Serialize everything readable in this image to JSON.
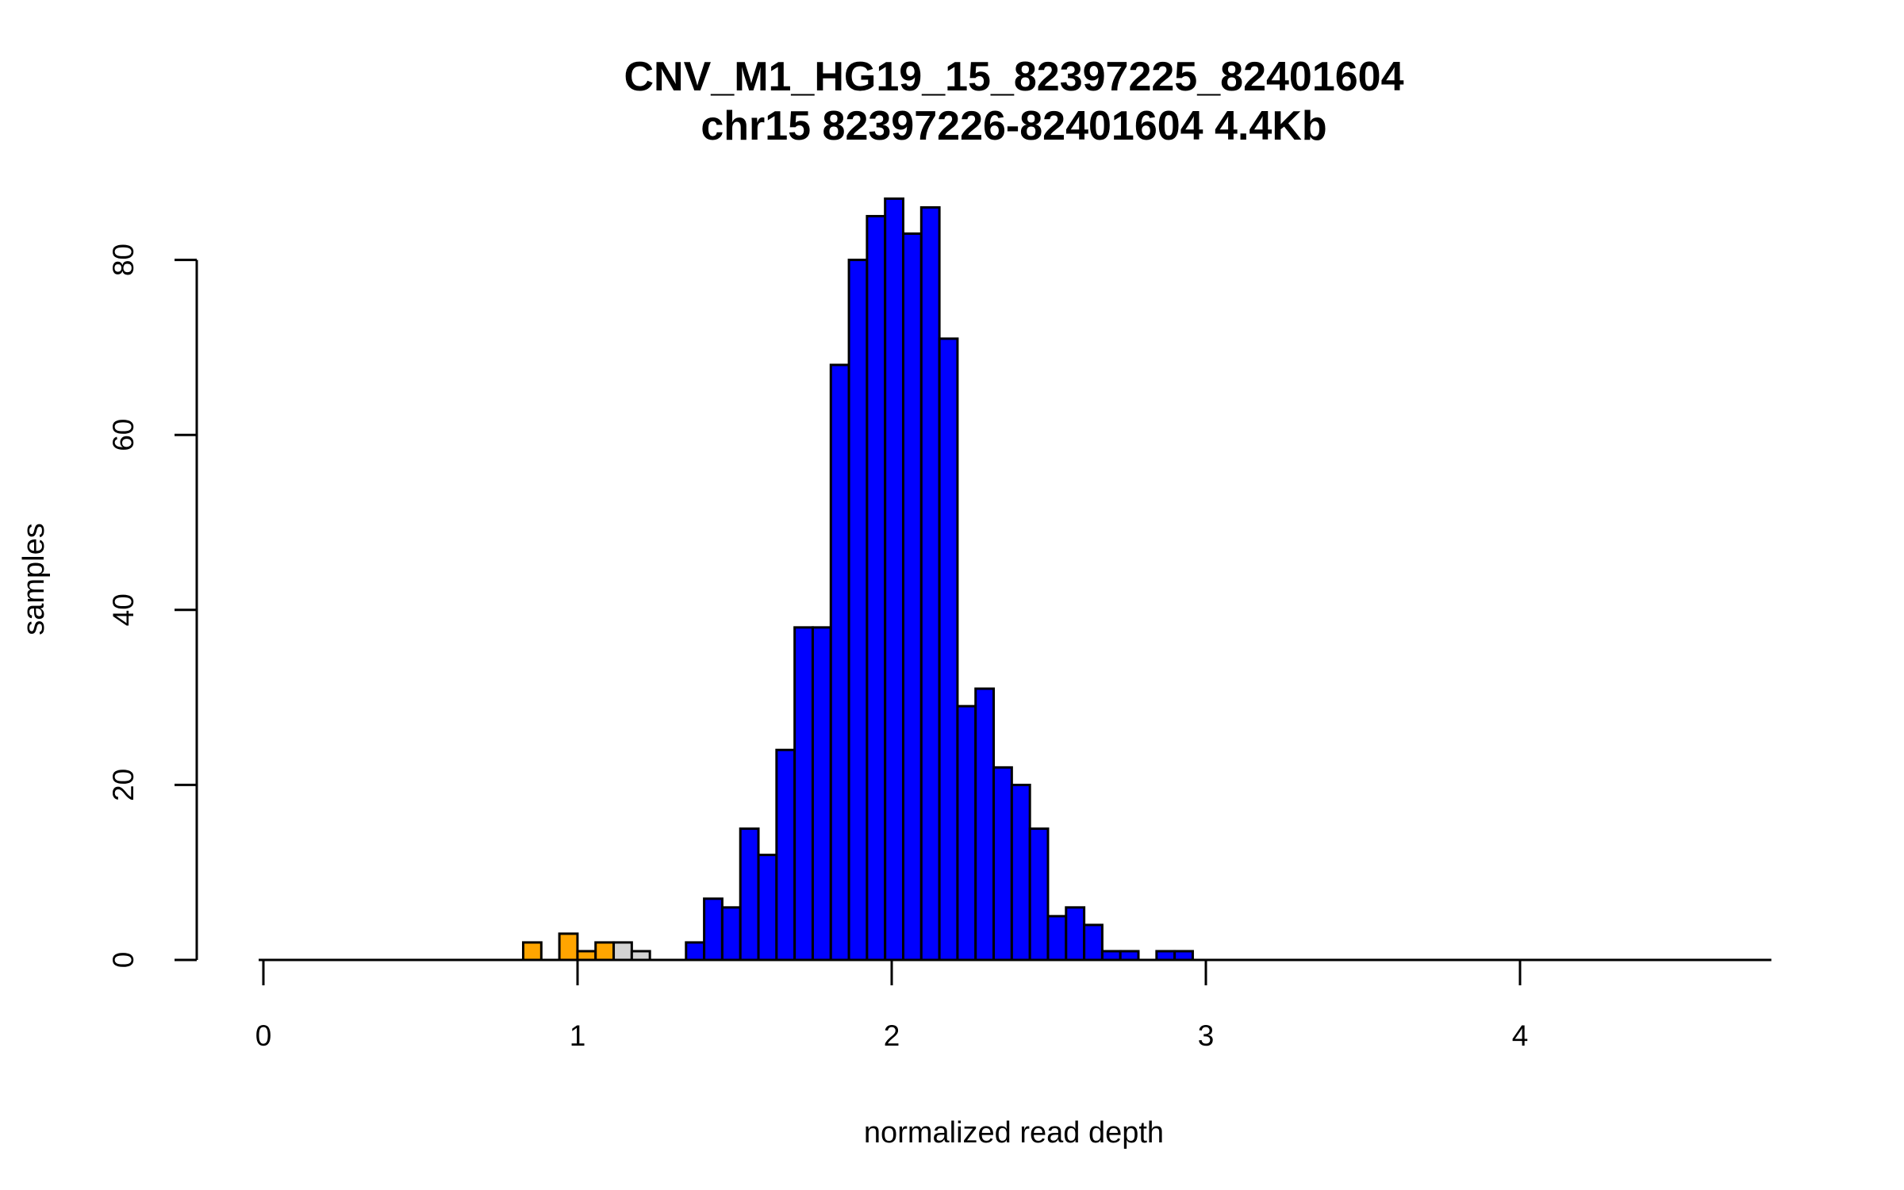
{
  "chart_data": {
    "type": "bar",
    "title": "CNV_M1_HG19_15_82397225_82401604",
    "subtitle": "chr15 82397226-82401604 4.4Kb",
    "xlabel": "normalized read depth",
    "ylabel": "samples",
    "xlim": [
      -0.015,
      4.8
    ],
    "ylim": [
      0,
      80
    ],
    "x_ticks": [
      "0",
      "1",
      "2",
      "3",
      "4"
    ],
    "y_ticks": [
      "0",
      "20",
      "40",
      "60",
      "80"
    ],
    "bin_start": 0.827,
    "bin_width": 0.0576,
    "counts": [
      2,
      0,
      3,
      1,
      2,
      2,
      1,
      0,
      0,
      2,
      7,
      6,
      15,
      12,
      24,
      38,
      38,
      68,
      80,
      85,
      87,
      83,
      86,
      71,
      29,
      31,
      22,
      20,
      15,
      5,
      6,
      4,
      1,
      1,
      0,
      1,
      1
    ],
    "bar_class": [
      "orange",
      "orange",
      "orange",
      "orange",
      "orange",
      "gray",
      "gray",
      "gray",
      "gray",
      "blue",
      "blue",
      "blue",
      "blue",
      "blue",
      "blue",
      "blue",
      "blue",
      "blue",
      "blue",
      "blue",
      "blue",
      "blue",
      "blue",
      "blue",
      "blue",
      "blue",
      "blue",
      "blue",
      "blue",
      "blue",
      "blue",
      "blue",
      "blue",
      "blue",
      "blue",
      "blue",
      "blue"
    ],
    "colors": {
      "orange": "#FFA500",
      "gray": "#D3D3D3",
      "blue": "#0000FF"
    },
    "grid": false
  }
}
